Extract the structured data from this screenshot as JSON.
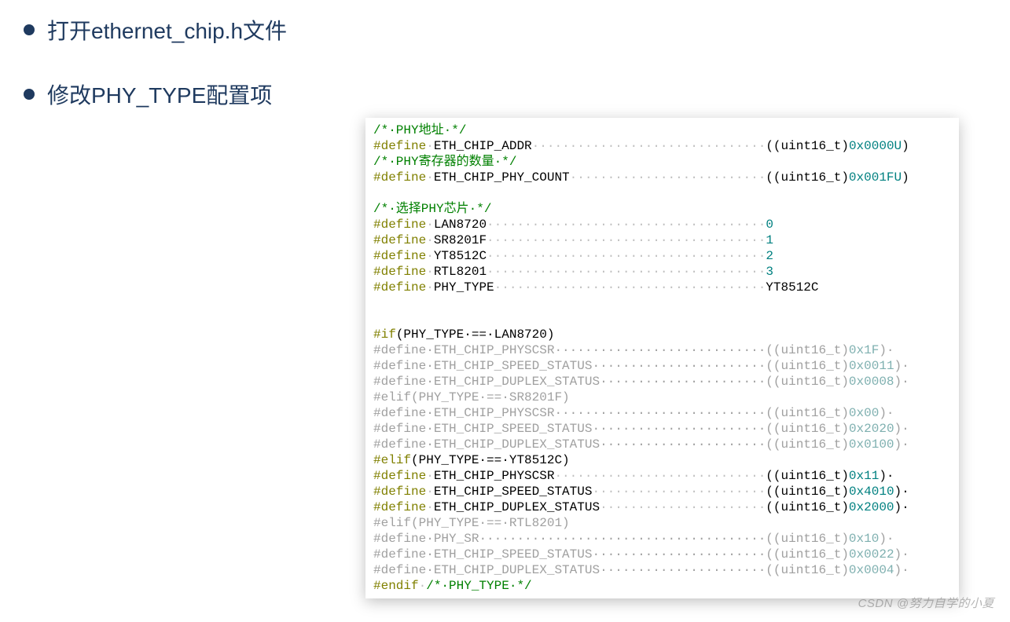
{
  "colors": {
    "bullet_dot": "#1f3a5f",
    "bullet_text": "#1f3a5f",
    "comment": "#008000",
    "define_kw": "#808000",
    "macro_name": "#000000",
    "dots": "#c0c0c0",
    "cast": "#000000",
    "hex": "#008080",
    "num": "#008080",
    "inactive": "#a0a0a0",
    "inactive_hex": "#7fb0b0",
    "preproc_kw": "#808000",
    "preproc_inactive": "#a0a0a0",
    "value_id": "#000000"
  },
  "bullets": [
    "打开ethernet_chip.h文件",
    "修改PHY_TYPE配置项"
  ],
  "code": {
    "c1": "/*·PHY地址·*/",
    "d1": {
      "kw": "#define",
      "sp": "·",
      "name": "ETH_CHIP_ADDR",
      "dots": "·······························",
      "cast": "((uint16_t)",
      "val": "0x0000U",
      "end": ")"
    },
    "c2": "/*·PHY寄存器的数量·*/",
    "d2": {
      "kw": "#define",
      "sp": "·",
      "name": "ETH_CHIP_PHY_COUNT",
      "dots": "··························",
      "cast": "((uint16_t)",
      "val": "0x001FU",
      "end": ")"
    },
    "blank1": "",
    "c3": "/*·选择PHY芯片·*/",
    "d3": {
      "kw": "#define",
      "sp": "·",
      "name": "LAN8720",
      "dots": "·····································",
      "val": "0"
    },
    "d4": {
      "kw": "#define",
      "sp": "·",
      "name": "SR8201F",
      "dots": "·····································",
      "val": "1"
    },
    "d5": {
      "kw": "#define",
      "sp": "·",
      "name": "YT8512C",
      "dots": "·····································",
      "val": "2"
    },
    "d6": {
      "kw": "#define",
      "sp": "·",
      "name": "RTL8201",
      "dots": "·····································",
      "val": "3"
    },
    "d7": {
      "kw": "#define",
      "sp": "·",
      "name": "PHY_TYPE",
      "dots": "····································",
      "valId": "YT8512C"
    },
    "blank2": "",
    "blank3": "",
    "if1": {
      "kw": "#if",
      "cond": "(PHY_TYPE·==·LAN8720)"
    },
    "i1": {
      "kw": "#define",
      "name": "ETH_CHIP_PHYSCSR",
      "dots": "····························",
      "cast": "((uint16_t)",
      "val": "0x1F",
      "end": ")·"
    },
    "i2": {
      "kw": "#define",
      "name": "ETH_CHIP_SPEED_STATUS",
      "dots": "·······················",
      "cast": "((uint16_t)",
      "val": "0x0011",
      "end": ")·"
    },
    "i3": {
      "kw": "#define",
      "name": "ETH_CHIP_DUPLEX_STATUS",
      "dots": "······················",
      "cast": "((uint16_t)",
      "val": "0x0008",
      "end": ")·"
    },
    "elif1": {
      "kw": "#elif",
      "cond": "(PHY_TYPE·==·SR8201F)"
    },
    "i4": {
      "kw": "#define",
      "name": "ETH_CHIP_PHYSCSR",
      "dots": "····························",
      "cast": "((uint16_t)",
      "val": "0x00",
      "end": ")·"
    },
    "i5": {
      "kw": "#define",
      "name": "ETH_CHIP_SPEED_STATUS",
      "dots": "·······················",
      "cast": "((uint16_t)",
      "val": "0x2020",
      "end": ")·"
    },
    "i6": {
      "kw": "#define",
      "name": "ETH_CHIP_DUPLEX_STATUS",
      "dots": "······················",
      "cast": "((uint16_t)",
      "val": "0x0100",
      "end": ")·"
    },
    "elif2": {
      "kw": "#elif",
      "cond": "(PHY_TYPE·==·YT8512C)"
    },
    "a1": {
      "kw": "#define",
      "name": "ETH_CHIP_PHYSCSR",
      "dots": "····························",
      "cast": "((uint16_t)",
      "val": "0x11",
      "end": ")·"
    },
    "a2": {
      "kw": "#define",
      "name": "ETH_CHIP_SPEED_STATUS",
      "dots": "·······················",
      "cast": "((uint16_t)",
      "val": "0x4010",
      "end": ")·"
    },
    "a3": {
      "kw": "#define",
      "name": "ETH_CHIP_DUPLEX_STATUS",
      "dots": "······················",
      "cast": "((uint16_t)",
      "val": "0x2000",
      "end": ")·"
    },
    "elif3": {
      "kw": "#elif",
      "cond": "(PHY_TYPE·==·RTL8201)"
    },
    "i7": {
      "kw": "#define",
      "name": "PHY_SR",
      "dots": "······································",
      "cast": "((uint16_t)",
      "val": "0x10",
      "end": ")·"
    },
    "i8": {
      "kw": "#define",
      "name": "ETH_CHIP_SPEED_STATUS",
      "dots": "·······················",
      "cast": "((uint16_t)",
      "val": "0x0022",
      "end": ")·"
    },
    "i9": {
      "kw": "#define",
      "name": "ETH_CHIP_DUPLEX_STATUS",
      "dots": "······················",
      "cast": "((uint16_t)",
      "val": "0x0004",
      "end": ")·"
    },
    "endif": {
      "kw": "#endif",
      "cmt": "/*·PHY_TYPE·*/"
    }
  },
  "watermark": "CSDN @努力自学的小夏"
}
